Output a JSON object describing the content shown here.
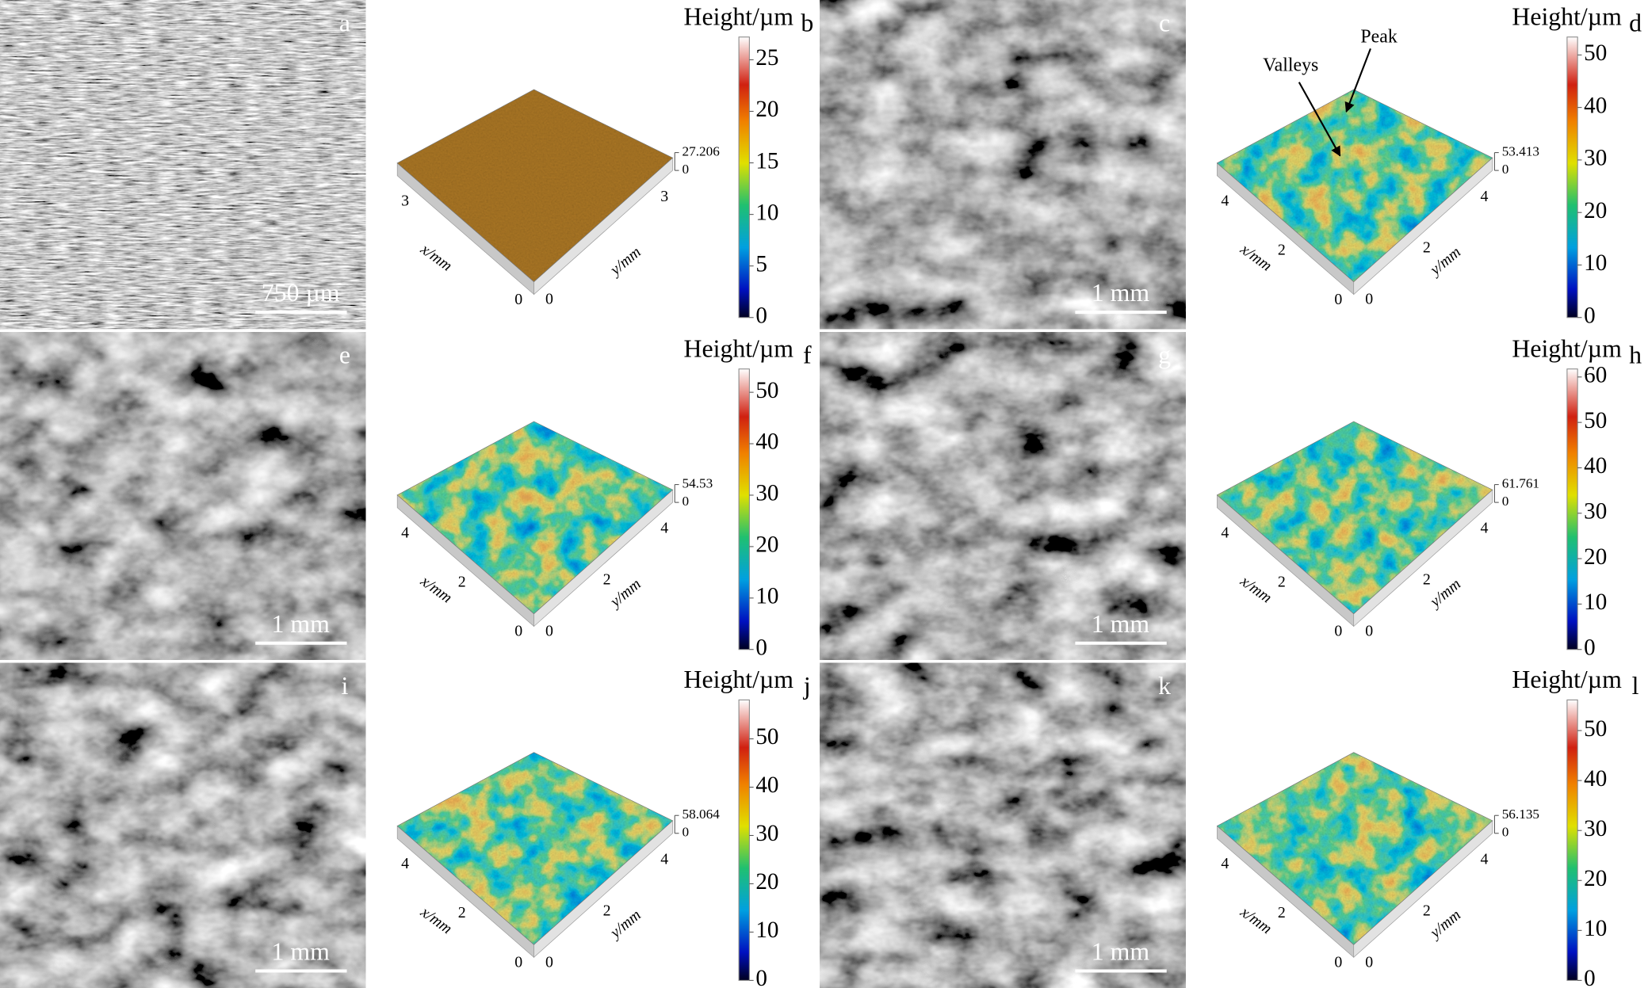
{
  "panels": [
    {
      "label": "a",
      "kind": "sem",
      "scale_bar": "750 µm"
    },
    {
      "label": "b",
      "kind": "surface",
      "colorbar_title": "Height/µm",
      "clim": [
        0,
        27.206
      ],
      "colorbar_ticks": [
        0,
        5,
        10,
        15,
        20,
        25
      ],
      "x_axis": "x/mm",
      "y_axis": "y/mm",
      "x_ticks": [
        "3",
        "0"
      ],
      "y_ticks": [
        "0",
        "3"
      ],
      "color": "#b07a25"
    },
    {
      "label": "c",
      "kind": "sem",
      "scale_bar": "1 mm"
    },
    {
      "label": "d",
      "kind": "surface",
      "colorbar_title": "Height/µm",
      "clim": [
        0,
        53.413
      ],
      "colorbar_ticks": [
        0,
        10,
        20,
        30,
        40,
        50
      ],
      "x_axis": "x/mm",
      "y_axis": "y/mm",
      "x_ticks": [
        "4",
        "2",
        "0"
      ],
      "y_ticks": [
        "0",
        "2",
        "4"
      ],
      "annotations": [
        "Valleys",
        "Peak"
      ]
    },
    {
      "label": "e",
      "kind": "sem",
      "scale_bar": "1 mm"
    },
    {
      "label": "f",
      "kind": "surface",
      "colorbar_title": "Height/µm",
      "clim": [
        0,
        54.53
      ],
      "colorbar_ticks": [
        0,
        10,
        20,
        30,
        40,
        50
      ],
      "x_axis": "x/mm",
      "y_axis": "y/mm",
      "x_ticks": [
        "4",
        "2",
        "0"
      ],
      "y_ticks": [
        "0",
        "2",
        "4"
      ]
    },
    {
      "label": "g",
      "kind": "sem",
      "scale_bar": "1 mm"
    },
    {
      "label": "h",
      "kind": "surface",
      "colorbar_title": "Height/µm",
      "clim": [
        0,
        61.761
      ],
      "colorbar_ticks": [
        0,
        10,
        20,
        30,
        40,
        50,
        60
      ],
      "x_axis": "x/mm",
      "y_axis": "y/mm",
      "x_ticks": [
        "4",
        "2",
        "0"
      ],
      "y_ticks": [
        "0",
        "2",
        "4"
      ]
    },
    {
      "label": "i",
      "kind": "sem",
      "scale_bar": "1 mm"
    },
    {
      "label": "j",
      "kind": "surface",
      "colorbar_title": "Height/µm",
      "clim": [
        0,
        58.064
      ],
      "colorbar_ticks": [
        0,
        10,
        20,
        30,
        40,
        50
      ],
      "x_axis": "x/mm",
      "y_axis": "y/mm",
      "x_ticks": [
        "4",
        "2",
        "0"
      ],
      "y_ticks": [
        "0",
        "2",
        "4"
      ]
    },
    {
      "label": "k",
      "kind": "sem",
      "scale_bar": "1 mm"
    },
    {
      "label": "l",
      "kind": "surface",
      "colorbar_title": "Height/µm",
      "clim": [
        0,
        56.135
      ],
      "colorbar_ticks": [
        0,
        10,
        20,
        30,
        40,
        50
      ],
      "x_axis": "x/mm",
      "y_axis": "y/mm",
      "x_ticks": [
        "4",
        "2",
        "0"
      ],
      "y_ticks": [
        "0",
        "2",
        "4"
      ]
    }
  ]
}
